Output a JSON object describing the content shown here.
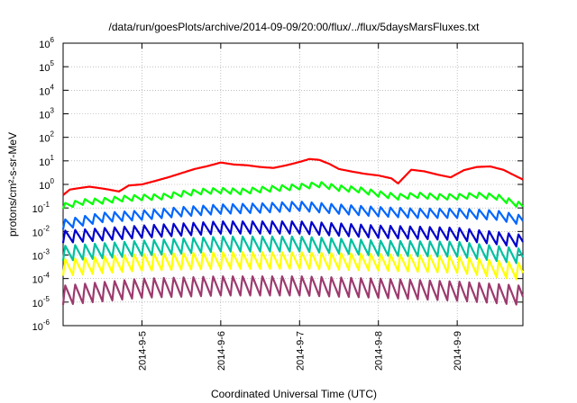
{
  "chart_data": {
    "type": "line",
    "title": "/data/run/goesPlots/archive/2014-09-09/20:00/flux/../flux/5daysMarsFluxes.txt",
    "xlabel": "Coordinated Universal Time (UTC)",
    "ylabel": "protons/cm²-s-sr-MeV",
    "yscale": "log",
    "ylim": [
      1e-06,
      1000000.0
    ],
    "xlim": [
      "2014-09-04 00:00",
      "2014-09-09 20:00"
    ],
    "grid": true,
    "y_ticks": [
      {
        "value": 1e-06,
        "base": "10",
        "exp": "-6"
      },
      {
        "value": 1e-05,
        "base": "10",
        "exp": "-5"
      },
      {
        "value": 0.0001,
        "base": "10",
        "exp": "-4"
      },
      {
        "value": 0.001,
        "base": "10",
        "exp": "-3"
      },
      {
        "value": 0.01,
        "base": "10",
        "exp": "-2"
      },
      {
        "value": 0.1,
        "base": "10",
        "exp": "-1"
      },
      {
        "value": 1.0,
        "base": "10",
        "exp": "0"
      },
      {
        "value": 10.0,
        "base": "10",
        "exp": "1"
      },
      {
        "value": 100.0,
        "base": "10",
        "exp": "2"
      },
      {
        "value": 1000.0,
        "base": "10",
        "exp": "3"
      },
      {
        "value": 10000.0,
        "base": "10",
        "exp": "4"
      },
      {
        "value": 100000.0,
        "base": "10",
        "exp": "5"
      },
      {
        "value": 1000000.0,
        "base": "10",
        "exp": "6"
      }
    ],
    "x_ticks": [
      {
        "value": "2014-09-05 00:00",
        "label": "2014-9-5"
      },
      {
        "value": "2014-09-06 00:00",
        "label": "2014-9-6"
      },
      {
        "value": "2014-09-07 00:00",
        "label": "2014-9-7"
      },
      {
        "value": "2014-09-08 00:00",
        "label": "2014-9-8"
      },
      {
        "value": "2014-09-09 00:00",
        "label": "2014-9-9"
      }
    ],
    "series": [
      {
        "color": "#ff0000",
        "x": [
          "2014-09-04 00:00",
          "2014-09-04 02:00",
          "2014-09-04 05:00",
          "2014-09-04 08:00",
          "2014-09-04 11:00",
          "2014-09-04 14:00",
          "2014-09-04 17:00",
          "2014-09-04 20:00",
          "2014-09-05 00:00",
          "2014-09-05 04:00",
          "2014-09-05 08:00",
          "2014-09-05 12:00",
          "2014-09-05 16:00",
          "2014-09-05 20:00",
          "2014-09-06 00:00",
          "2014-09-06 04:00",
          "2014-09-06 08:00",
          "2014-09-06 12:00",
          "2014-09-06 16:00",
          "2014-09-06 20:00",
          "2014-09-07 00:00",
          "2014-09-07 03:00",
          "2014-09-07 06:00",
          "2014-09-07 09:00",
          "2014-09-07 12:00",
          "2014-09-07 16:00",
          "2014-09-07 20:00",
          "2014-09-08 00:00",
          "2014-09-08 04:00",
          "2014-09-08 06:00",
          "2014-09-08 10:00",
          "2014-09-08 14:00",
          "2014-09-08 18:00",
          "2014-09-08 22:00",
          "2014-09-09 02:00",
          "2014-09-09 06:00",
          "2014-09-09 10:00",
          "2014-09-09 14:00",
          "2014-09-09 20:00"
        ],
        "y": [
          0.35,
          0.6,
          0.7,
          0.8,
          0.7,
          0.6,
          0.5,
          0.9,
          1.0,
          1.4,
          2.0,
          3.0,
          4.5,
          6.0,
          8.5,
          7.0,
          6.5,
          5.5,
          5.0,
          6.5,
          9.0,
          12.0,
          11.0,
          7.5,
          4.5,
          3.5,
          2.8,
          2.4,
          1.8,
          1.1,
          4.2,
          3.6,
          2.6,
          2.0,
          4.0,
          5.5,
          5.8,
          4.2,
          1.6
        ]
      },
      {
        "color": "#00ff00",
        "x": [
          "2014-09-04 00:00",
          "2014-09-04 06:00",
          "2014-09-04 12:00",
          "2014-09-04 18:00",
          "2014-09-05 00:00",
          "2014-09-05 06:00",
          "2014-09-05 12:00",
          "2014-09-05 18:00",
          "2014-09-06 00:00",
          "2014-09-06 06:00",
          "2014-09-06 12:00",
          "2014-09-06 18:00",
          "2014-09-07 00:00",
          "2014-09-07 06:00",
          "2014-09-07 12:00",
          "2014-09-07 18:00",
          "2014-09-08 00:00",
          "2014-09-08 06:00",
          "2014-09-08 12:00",
          "2014-09-08 18:00",
          "2014-09-09 00:00",
          "2014-09-09 06:00",
          "2014-09-09 12:00",
          "2014-09-09 20:00"
        ],
        "y": [
          0.12,
          0.18,
          0.2,
          0.25,
          0.28,
          0.3,
          0.4,
          0.5,
          0.55,
          0.5,
          0.6,
          0.7,
          0.8,
          1.0,
          0.7,
          0.6,
          0.4,
          0.3,
          0.35,
          0.3,
          0.3,
          0.35,
          0.3,
          0.12
        ]
      },
      {
        "color": "#0066ff",
        "x": [
          "2014-09-04 00:00",
          "2014-09-04 12:00",
          "2014-09-05 00:00",
          "2014-09-05 12:00",
          "2014-09-06 00:00",
          "2014-09-06 12:00",
          "2014-09-07 00:00",
          "2014-09-07 12:00",
          "2014-09-08 00:00",
          "2014-09-08 12:00",
          "2014-09-09 00:00",
          "2014-09-09 12:00",
          "2014-09-09 20:00"
        ],
        "y": [
          0.02,
          0.04,
          0.05,
          0.07,
          0.09,
          0.1,
          0.12,
          0.09,
          0.07,
          0.06,
          0.06,
          0.05,
          0.03
        ]
      },
      {
        "color": "#0000cc",
        "x": [
          "2014-09-04 00:00",
          "2014-09-05 00:00",
          "2014-09-06 00:00",
          "2014-09-07 00:00",
          "2014-09-08 00:00",
          "2014-09-09 00:00",
          "2014-09-09 20:00"
        ],
        "y": [
          0.006,
          0.01,
          0.015,
          0.015,
          0.01,
          0.008,
          0.004
        ]
      },
      {
        "color": "#00c0a0",
        "x": [
          "2014-09-04 00:00",
          "2014-09-05 00:00",
          "2014-09-06 00:00",
          "2014-09-07 00:00",
          "2014-09-08 00:00",
          "2014-09-09 00:00",
          "2014-09-09 20:00"
        ],
        "y": [
          0.0012,
          0.002,
          0.003,
          0.003,
          0.002,
          0.0018,
          0.0009
        ]
      },
      {
        "color": "#ffff00",
        "x": [
          "2014-09-04 00:00",
          "2014-09-05 00:00",
          "2014-09-06 00:00",
          "2014-09-07 00:00",
          "2014-09-08 00:00",
          "2014-09-09 00:00",
          "2014-09-09 20:00"
        ],
        "y": [
          0.0003,
          0.0005,
          0.0006,
          0.0006,
          0.0005,
          0.0004,
          0.0002
        ]
      },
      {
        "color": "#9c3a6e",
        "x": [
          "2014-09-04 00:00",
          "2014-09-05 00:00",
          "2014-09-06 00:00",
          "2014-09-07 00:00",
          "2014-09-08 00:00",
          "2014-09-09 00:00",
          "2014-09-09 20:00"
        ],
        "y": [
          2e-05,
          4e-05,
          5e-05,
          5e-05,
          4e-05,
          3e-05,
          2e-05
        ]
      }
    ],
    "oscillation": [
      {
        "period_h": 3,
        "amp": 1.0
      },
      {
        "period_h": 3,
        "amp": 1.6
      },
      {
        "period_h": 3,
        "amp": 2.2
      },
      {
        "period_h": 3,
        "amp": 2.8
      },
      {
        "period_h": 3,
        "amp": 3.5
      },
      {
        "period_h": 3,
        "amp": 4.0
      },
      {
        "period_h": 3,
        "amp": 5.0
      }
    ]
  }
}
